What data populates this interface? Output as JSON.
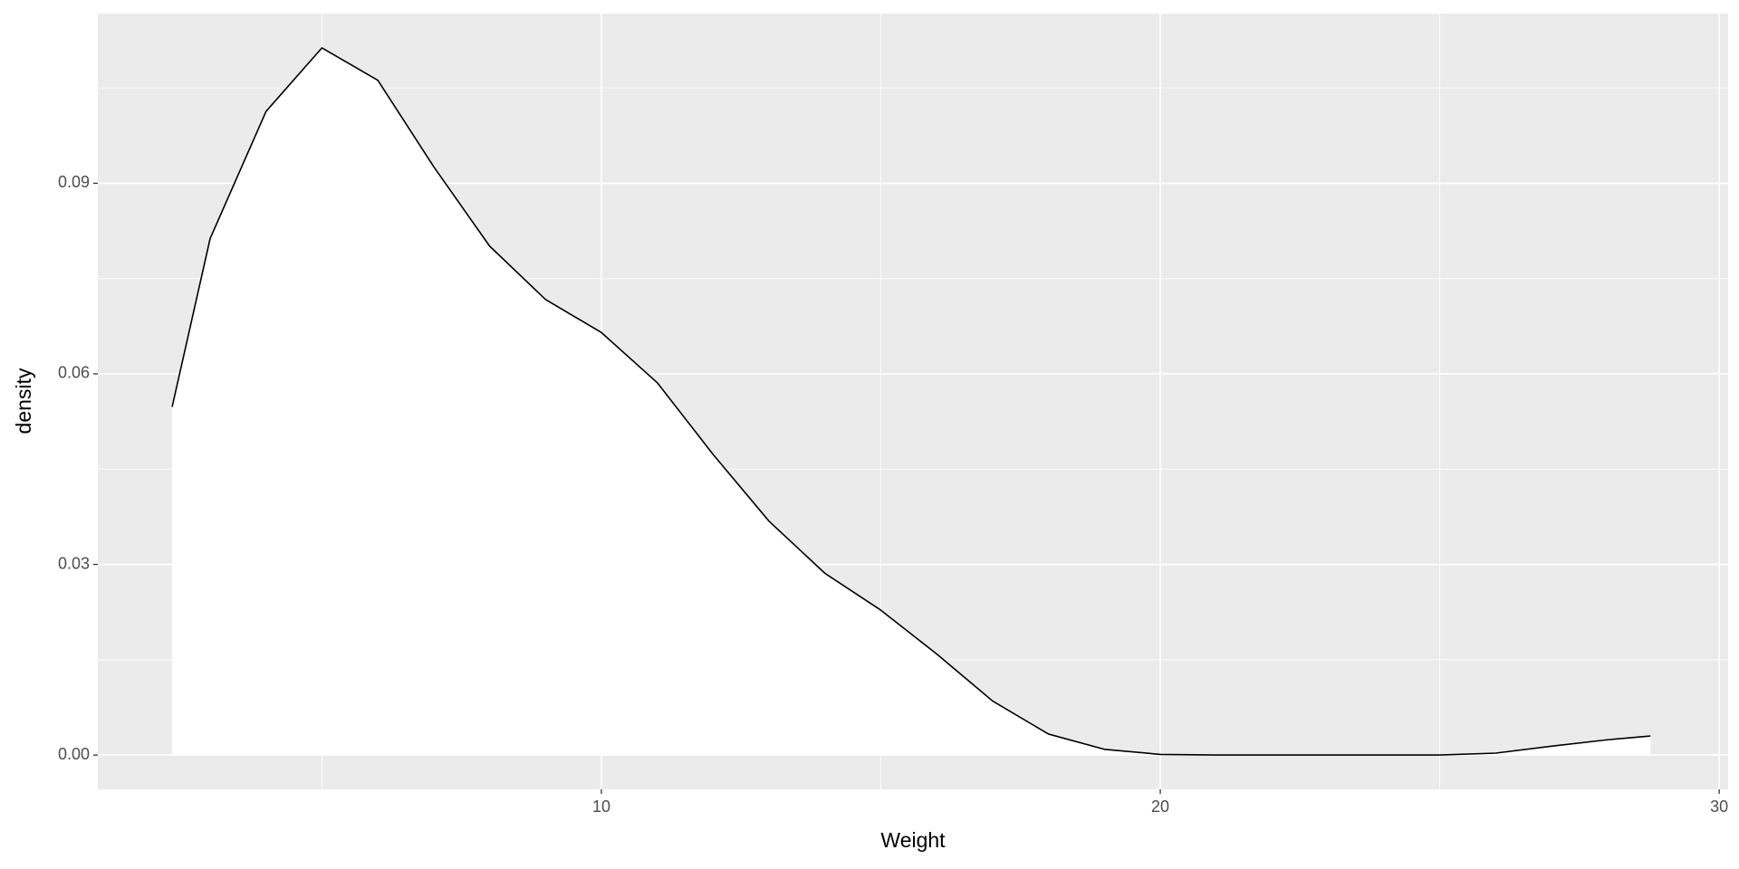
{
  "chart_data": {
    "type": "density",
    "x_label": "Weight",
    "y_label": "density",
    "x": [
      2.32,
      3,
      4,
      5,
      6,
      7,
      8,
      9,
      10,
      11,
      12,
      13,
      14,
      15,
      16,
      17,
      18,
      19,
      20,
      21,
      22,
      23,
      24,
      25,
      26,
      27,
      28,
      28.77
    ],
    "values": [
      0.0548,
      0.0813,
      0.1013,
      0.1113,
      0.1062,
      0.0926,
      0.0801,
      0.0717,
      0.0665,
      0.0586,
      0.0473,
      0.0368,
      0.0286,
      0.0228,
      0.0159,
      0.0085,
      0.0033,
      0.0009,
      0.0001,
      0,
      0,
      0,
      0,
      0,
      0.0003,
      0.0014,
      0.0024,
      0.003
    ],
    "fill": "#ffffff",
    "color": "#000000",
    "panel_color": "#ebebeb",
    "grid": true,
    "xlim": [
      0.99,
      30.16
    ],
    "ylim": [
      -0.0054,
      0.1167
    ],
    "xticks": [
      10,
      20,
      30
    ],
    "yticks": [
      {
        "value": 0,
        "label": "0.00"
      },
      {
        "value": 0.03,
        "label": "0.03"
      },
      {
        "value": 0.06,
        "label": "0.06"
      },
      {
        "value": 0.09,
        "label": "0.09"
      }
    ],
    "x_minor_ticks": [
      5,
      15,
      25
    ],
    "y_minor_ticks": [
      0.015,
      0.045,
      0.075,
      0.105
    ]
  }
}
